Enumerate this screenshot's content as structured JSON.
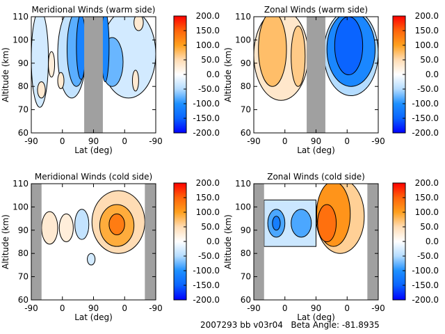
{
  "chart_data": [
    {
      "type": "heatmap",
      "title": "Meridional Winds (warm side)",
      "xlabel": "Lat (deg)",
      "ylabel": "Altitude (km)",
      "xticks": [
        "-90",
        "0",
        "90",
        "0",
        "-90"
      ],
      "yticks": [
        "60",
        "70",
        "80",
        "90",
        "100",
        "110"
      ],
      "ylim": [
        60,
        110
      ],
      "no_data": [
        [
          1.7,
          2.3
        ]
      ],
      "regions": [
        {
          "shape": "ellipse",
          "x": [
            0.0,
            0.55
          ],
          "alt": [
            71,
            113
          ],
          "value": -30
        },
        {
          "shape": "ellipse",
          "x": [
            0.85,
            1.75
          ],
          "alt": [
            75,
            113
          ],
          "value": -40
        },
        {
          "shape": "ellipse",
          "x": [
            1.15,
            1.75
          ],
          "alt": [
            80,
            112
          ],
          "value": -80
        },
        {
          "shape": "ellipse",
          "x": [
            1.45,
            1.75
          ],
          "alt": [
            83,
            111
          ],
          "value": -115
        },
        {
          "shape": "ellipse",
          "x": [
            0.2,
            0.45
          ],
          "alt": [
            75,
            82
          ],
          "value": 30
        },
        {
          "shape": "ellipse",
          "x": [
            0.85,
            1.05
          ],
          "alt": [
            79,
            86
          ],
          "value": 30
        },
        {
          "shape": "ellipse",
          "x": [
            0.55,
            0.75
          ],
          "alt": [
            84,
            95
          ],
          "value": 25
        },
        {
          "shape": "ellipse",
          "x": [
            2.25,
            4.0
          ],
          "alt": [
            75,
            113
          ],
          "value": -30
        },
        {
          "shape": "ellipse",
          "x": [
            2.25,
            2.95
          ],
          "alt": [
            80,
            101
          ],
          "value": -75
        },
        {
          "shape": "ellipse",
          "x": [
            2.25,
            2.5
          ],
          "alt": [
            82,
            112
          ],
          "value": -110
        },
        {
          "shape": "ellipse",
          "x": [
            3.25,
            3.45
          ],
          "alt": [
            78,
            87
          ],
          "value": 30
        },
        {
          "shape": "ellipse",
          "x": [
            3.3,
            3.6
          ],
          "alt": [
            104,
            111
          ],
          "value": 30
        }
      ]
    },
    {
      "type": "heatmap",
      "title": "Zonal Winds (warm side)",
      "xlabel": "Lat (deg)",
      "ylabel": "Altitude (km)",
      "xticks": [
        "-90",
        "0",
        "90",
        "0",
        "-90"
      ],
      "yticks": [
        "60",
        "70",
        "80",
        "90",
        "100",
        "110"
      ],
      "ylim": [
        60,
        110
      ],
      "no_data": [
        [
          1.7,
          2.3
        ]
      ],
      "regions": [
        {
          "shape": "ellipse",
          "x": [
            0.0,
            1.75
          ],
          "alt": [
            74,
            113
          ],
          "value": 35
        },
        {
          "shape": "ellipse",
          "x": [
            0.15,
            1.05
          ],
          "alt": [
            80,
            112
          ],
          "value": 75
        },
        {
          "shape": "ellipse",
          "x": [
            1.2,
            1.65
          ],
          "alt": [
            80,
            106
          ],
          "value": 65
        },
        {
          "shape": "ellipse",
          "x": [
            2.25,
            4.0
          ],
          "alt": [
            76,
            113
          ],
          "value": -50
        },
        {
          "shape": "ellipse",
          "x": [
            2.35,
            3.9
          ],
          "alt": [
            80,
            112
          ],
          "value": -110
        },
        {
          "shape": "ellipse",
          "x": [
            2.6,
            3.5
          ],
          "alt": [
            85,
            110
          ],
          "value": -150
        }
      ]
    },
    {
      "type": "heatmap",
      "title": "Meridional Winds (cold side)",
      "xlabel": "Lat (deg)",
      "ylabel": "Altitude (km)",
      "xticks": [
        "-90",
        "0",
        "90",
        "0",
        "-90"
      ],
      "yticks": [
        "60",
        "70",
        "80",
        "90",
        "100",
        "110"
      ],
      "ylim": [
        60,
        110
      ],
      "no_data": [
        [
          0.0,
          0.33
        ],
        [
          3.65,
          4.0
        ]
      ],
      "regions": [
        {
          "shape": "ellipse",
          "x": [
            0.33,
            0.85
          ],
          "alt": [
            84,
            98
          ],
          "value": 30
        },
        {
          "shape": "ellipse",
          "x": [
            0.9,
            1.35
          ],
          "alt": [
            85,
            97
          ],
          "value": 25
        },
        {
          "shape": "ellipse",
          "x": [
            1.4,
            1.85
          ],
          "alt": [
            86,
            99
          ],
          "value": -40
        },
        {
          "shape": "ellipse",
          "x": [
            1.95,
            3.65
          ],
          "alt": [
            80,
            107
          ],
          "value": 50
        },
        {
          "shape": "ellipse",
          "x": [
            2.2,
            3.3
          ],
          "alt": [
            83,
            101
          ],
          "value": 90
        },
        {
          "shape": "ellipse",
          "x": [
            2.5,
            3.0
          ],
          "alt": [
            88,
            97
          ],
          "value": 130
        },
        {
          "shape": "ellipse",
          "x": [
            1.8,
            2.05
          ],
          "alt": [
            75,
            80
          ],
          "value": -30
        }
      ]
    },
    {
      "type": "heatmap",
      "title": "Zonal Winds (cold side)",
      "xlabel": "Lat (deg)",
      "ylabel": "Altitude (km)",
      "xticks": [
        "-90",
        "0",
        "90",
        "0",
        "-90"
      ],
      "yticks": [
        "60",
        "70",
        "80",
        "90",
        "100",
        "110"
      ],
      "ylim": [
        60,
        110
      ],
      "no_data": [
        [
          0.0,
          0.33
        ],
        [
          3.65,
          4.0
        ]
      ],
      "regions": [
        {
          "shape": "rect",
          "x": [
            0.33,
            2.0
          ],
          "alt": [
            83,
            103
          ],
          "value": -35
        },
        {
          "shape": "ellipse",
          "x": [
            0.45,
            1.0
          ],
          "alt": [
            87,
            99
          ],
          "value": -85
        },
        {
          "shape": "ellipse",
          "x": [
            1.2,
            1.85
          ],
          "alt": [
            87,
            99
          ],
          "value": -85
        },
        {
          "shape": "ellipse",
          "x": [
            0.6,
            0.85
          ],
          "alt": [
            90,
            96
          ],
          "value": -120
        },
        {
          "shape": "ellipse",
          "x": [
            2.0,
            3.55
          ],
          "alt": [
            80,
            112
          ],
          "value": 60
        },
        {
          "shape": "ellipse",
          "x": [
            2.02,
            3.1
          ],
          "alt": [
            83,
            111
          ],
          "value": 110
        },
        {
          "shape": "ellipse",
          "x": [
            2.05,
            2.65
          ],
          "alt": [
            85,
            101
          ],
          "value": 140
        }
      ]
    }
  ],
  "colorbar": {
    "ticks": [
      "200.0",
      "150.0",
      "100.0",
      "50.0",
      "0.0",
      "-50.0",
      "-100.0",
      "-150.0",
      "-200.0"
    ],
    "range": [
      -200,
      200
    ],
    "colors": [
      "#0000ff",
      "#0a64ff",
      "#1e90ff",
      "#b4dcff",
      "#ffffff",
      "#ffdcb4",
      "#ffa01e",
      "#ff640a",
      "#ff0000"
    ]
  },
  "no_data_color": "#a0a0a0",
  "footer": "2007293 bb v03r04   Beta Angle: -81.8935"
}
